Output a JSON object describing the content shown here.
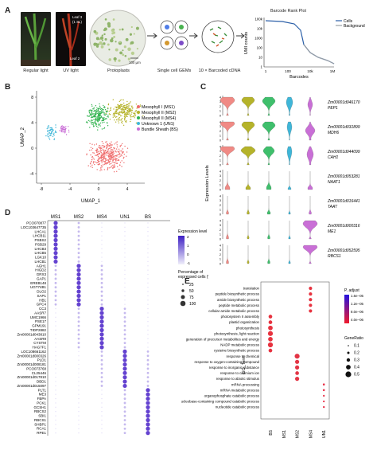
{
  "panel_a": {
    "letter": "A",
    "regular_light": "Regular light",
    "uv_light": "UV light",
    "leaf3": "Leaf 3",
    "leaf3_sub": "(1 SL)",
    "leaf2": "Leaf 2",
    "protoplasts": "Protoplasts",
    "scale": "100 µm",
    "gems": "Single cell GEMs",
    "cdna": "10 × Barcoded cDNA",
    "rank_plot": {
      "title": "Barcode Rank Plot",
      "legend": [
        "Cells",
        "Background"
      ],
      "xlabel": "Barcodes",
      "ylabel": "UMI counts",
      "xticks": [
        "1",
        "100",
        "10k",
        "1M"
      ],
      "yticks": [
        "100k",
        "10k",
        "1000",
        "100",
        "10",
        "1"
      ]
    }
  },
  "panel_b": {
    "letter": "B",
    "xlabel": "UMAP_1",
    "ylabel": "UMAP_2",
    "xticks": [
      "-8",
      "-4",
      "0",
      "4"
    ],
    "yticks": [
      "8",
      "4",
      "0",
      "-4"
    ],
    "legend": [
      {
        "label": "Mesophyll I (MS1)",
        "color": "#ef6c6c"
      },
      {
        "label": "Mesophyll II (MS2)",
        "color": "#b5b32a"
      },
      {
        "label": "Mesophyll II (MS4)",
        "color": "#32b34f"
      },
      {
        "label": "Unknown 1 (UN1)",
        "color": "#3fb6d8"
      },
      {
        "label": "Bundle Sheath (BS)",
        "color": "#c96fd6"
      }
    ]
  },
  "panel_c": {
    "letter": "C",
    "ylabel": "Expression Levels",
    "clusters": [
      "MS1",
      "MS2",
      "MS4",
      "UN1",
      "BS"
    ],
    "genes": [
      {
        "id": "Zm00001d046170",
        "name": "PEP1"
      },
      {
        "id": "Zm00001d031899",
        "name": "MDH6"
      },
      {
        "id": "Zm00001d044099",
        "name": "CAH1"
      },
      {
        "id": "Zm00001d053281",
        "name": "NAAT1"
      },
      {
        "id": "Zm00001d016441",
        "name": "TAAT"
      },
      {
        "id": "Zm00001d000316",
        "name": "ME1"
      },
      {
        "id": "Zm00001d052595",
        "name": "RBCS1"
      }
    ],
    "yticks": [
      "4",
      "3",
      "2",
      "1",
      "0"
    ]
  },
  "panel_d": {
    "letter": "D",
    "clusters": [
      "MS1",
      "MS2",
      "MS4",
      "UN1",
      "BS"
    ],
    "genes": [
      "PCO070877",
      "LOC103647735",
      "LHCA1",
      "LHCB11",
      "PSBS2",
      "PSB29",
      "LHCB3",
      "LHCB5",
      "LGK10",
      "LHCB1",
      "AGH1",
      "HIGD2",
      "GRX3",
      "GAP1",
      "EREB148",
      "UGT74B1",
      "DLO2",
      "SAP1",
      "HB1",
      "GPC4",
      "CC3",
      "AASR7",
      "UMC1966",
      "PSE17",
      "GPM191",
      "TIDP2882",
      "Zm00001d043810",
      "AASR9",
      "CYSTM",
      "HAG7F1",
      "LOC108661162",
      "Zm00001d000326",
      "PLD1",
      "Zm00001d008181",
      "PCO073768",
      "CL25446",
      "Zm00001d017810",
      "DBD1",
      "Zm00001d015097",
      "PLT1",
      "ME3",
      "FBPA",
      "PCK1",
      "GCSH1",
      "RBCS2",
      "SBI1",
      "RBCS1",
      "SHBP1",
      "RCA1",
      "RPE1"
    ],
    "legend_expr_title": "Expression level",
    "legend_expr_ticks": [
      "2",
      "1",
      "0",
      "-1"
    ],
    "legend_pct_title": "Percentage of expressed cells (%)",
    "legend_pct_values": [
      "25",
      "50",
      "75",
      "100"
    ]
  },
  "panel_e": {
    "letter": "E",
    "ylabel": "GO_Term",
    "clusters": [
      "BS",
      "MS1",
      "MS2",
      "MS4",
      "UN1"
    ],
    "terms": [
      "translation",
      "peptide biosynthetic process",
      "amide biosynthetic process",
      "peptide metabolic process",
      "cellular amide metabolic process",
      "photosystem II assembly",
      "plastid organization",
      "photosynthesis",
      "photosynthesis, light reaction",
      "generation of precursor metabolites and energy",
      "NADP metabolic process",
      "cysteine biosynthetic process",
      "response to chemical",
      "response to oxygen-containing compound",
      "response to inorganic substance",
      "response to cadmium ion",
      "response to abiotic stimulus",
      "mRNA processing",
      "mRNA metabolic process",
      "organophosphate catabolic process",
      "nucleobase-containing compound catabolic process",
      "nucleotide catabolic process"
    ],
    "legend_padj_title": "P. adjust",
    "legend_padj_ticks": [
      "1.6e−05",
      "1.2e−05",
      "8.0e−06",
      "4.0e−06"
    ],
    "legend_gr_title": "GeneRatio",
    "legend_gr_values": [
      "0.1",
      "0.2",
      "0.3",
      "0.4",
      "0.5"
    ]
  }
}
